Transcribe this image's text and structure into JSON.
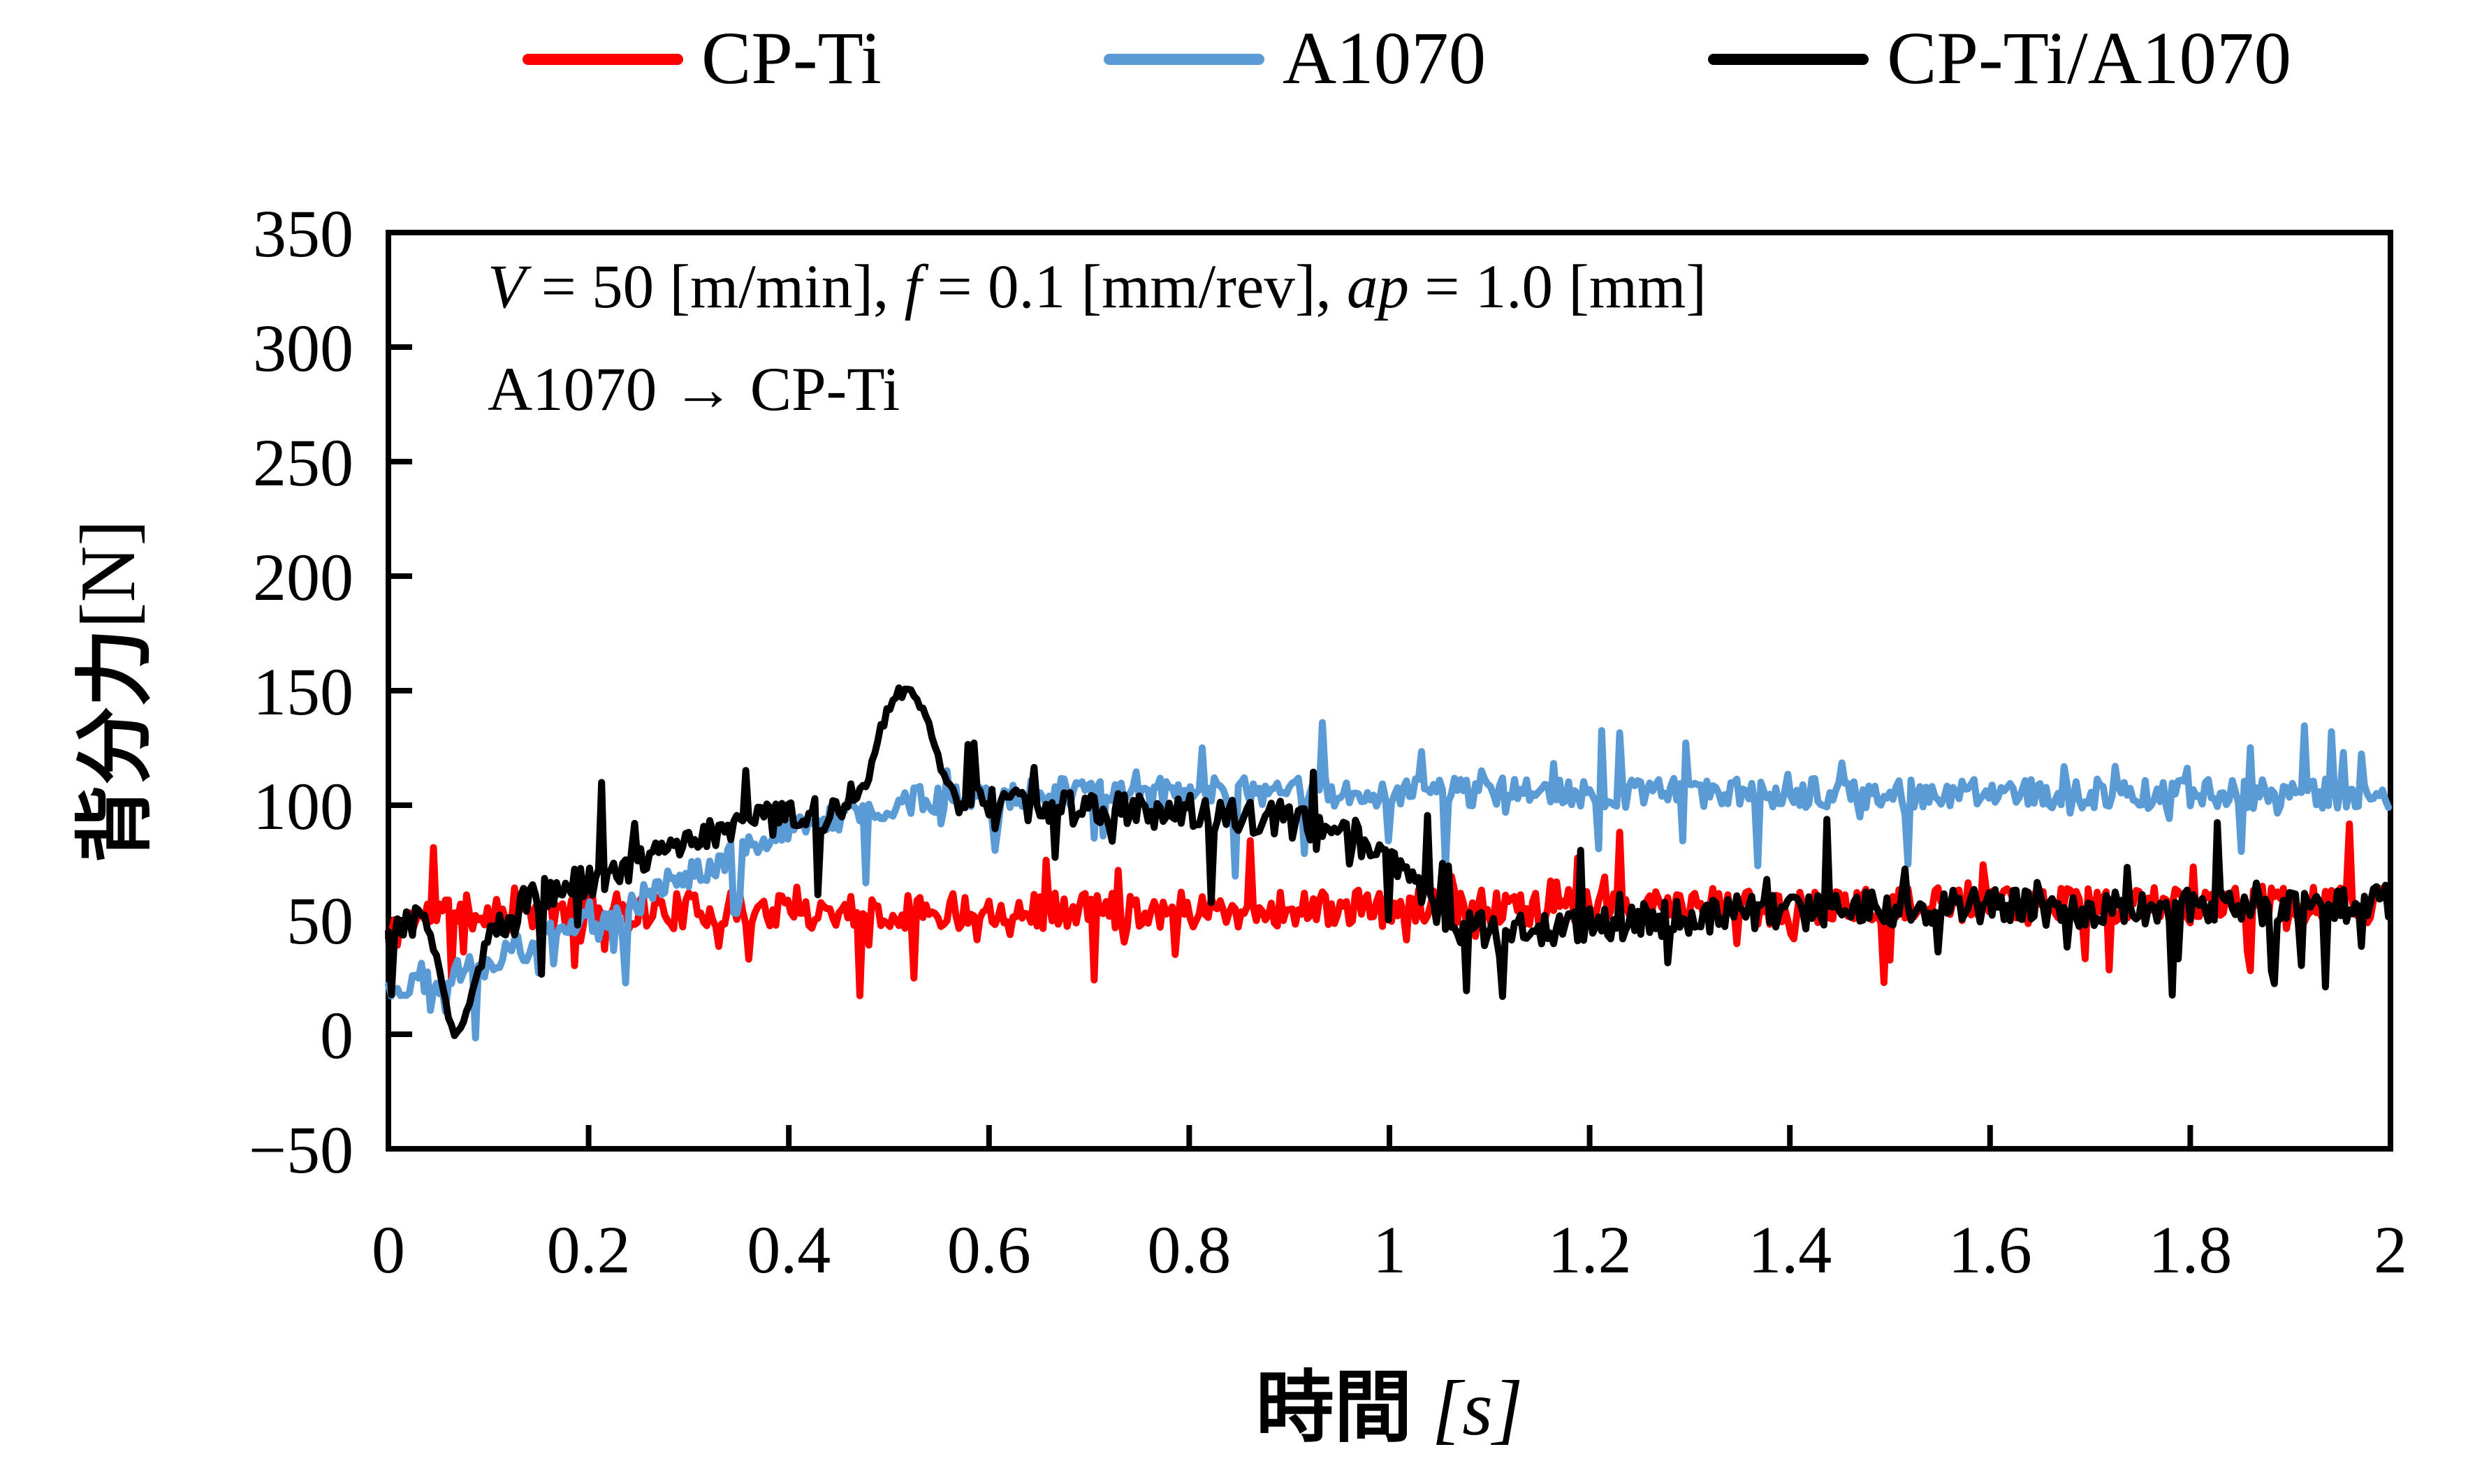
{
  "chart_data": {
    "type": "line",
    "title": "",
    "xlabel_cjk": "時間",
    "xlabel_unit": "[s]",
    "ylabel_cjk": "背分力",
    "ylabel_unit": "[N]",
    "grid": false,
    "legend_position": "top",
    "background": "#ffffff",
    "frame_color": "#000000",
    "x_axis": {
      "min": 0,
      "max": 2,
      "tick_step": 0.2,
      "ticks": [
        {
          "v": 0,
          "label": "0"
        },
        {
          "v": 0.2,
          "label": "0.2"
        },
        {
          "v": 0.4,
          "label": "0.4"
        },
        {
          "v": 0.6,
          "label": "0.6"
        },
        {
          "v": 0.8,
          "label": "0.8"
        },
        {
          "v": 1,
          "label": "1"
        },
        {
          "v": 1.2,
          "label": "1.2"
        },
        {
          "v": 1.4,
          "label": "1.4"
        },
        {
          "v": 1.6,
          "label": "1.6"
        },
        {
          "v": 1.8,
          "label": "1.8"
        },
        {
          "v": 2,
          "label": "2"
        }
      ]
    },
    "y_axis": {
      "min": -50,
      "max": 350,
      "tick_step": 50,
      "ticks": [
        {
          "v": 350,
          "label": "350"
        },
        {
          "v": 300,
          "label": "300"
        },
        {
          "v": 250,
          "label": "250"
        },
        {
          "v": 200,
          "label": "200"
        },
        {
          "v": 150,
          "label": "150"
        },
        {
          "v": 100,
          "label": "100"
        },
        {
          "v": 50,
          "label": "50"
        },
        {
          "v": 0,
          "label": "0"
        },
        {
          "v": -50,
          "label": "−50"
        }
      ]
    },
    "annotation": {
      "line1_segments": [
        {
          "t": "V",
          "i": true
        },
        {
          "t": " = 50 [m/min], ",
          "i": false
        },
        {
          "t": "f",
          "i": true
        },
        {
          "t": " = 0.1 [mm/rev], ",
          "i": false
        },
        {
          "t": "ap",
          "i": true
        },
        {
          "t": " = 1.0 [mm]",
          "i": false
        }
      ],
      "line2": "A1070 → CP-Ti"
    },
    "series": [
      {
        "name": "CP-Ti",
        "color": "#FF0000",
        "seed": 11,
        "noise_amp": 8,
        "spike_prob": 0.085,
        "spike_max": 28,
        "spike_neg_bias": 0.6,
        "smooth_windows": [],
        "keypoints": [
          [
            0,
            42
          ],
          [
            0.02,
            50
          ],
          [
            0.05,
            53
          ],
          [
            0.3,
            54
          ],
          [
            0.6,
            54
          ],
          [
            1.0,
            55
          ],
          [
            1.5,
            56
          ],
          [
            2,
            57
          ]
        ]
      },
      {
        "name": "A1070",
        "color": "#5B9BD5",
        "seed": 22,
        "noise_amp": 6.5,
        "spike_prob": 0.09,
        "spike_max": 30,
        "spike_neg_bias": 0.58,
        "smooth_windows": [],
        "keypoints": [
          [
            0,
            20
          ],
          [
            0.05,
            24
          ],
          [
            0.1,
            32
          ],
          [
            0.15,
            40
          ],
          [
            0.2,
            49
          ],
          [
            0.25,
            59
          ],
          [
            0.3,
            70
          ],
          [
            0.35,
            80
          ],
          [
            0.4,
            88
          ],
          [
            0.45,
            95
          ],
          [
            0.5,
            100
          ],
          [
            0.55,
            103
          ],
          [
            0.6,
            105
          ],
          [
            1.0,
            106
          ],
          [
            1.5,
            105
          ],
          [
            2,
            105
          ]
        ]
      },
      {
        "name": "CP-Ti/A1070",
        "color": "#000000",
        "seed": 33,
        "noise_amp": 7.5,
        "spike_prob": 0.09,
        "spike_max": 32,
        "spike_neg_bias": 0.55,
        "smooth_windows": [
          [
            0.03,
            0.095
          ],
          [
            0.455,
            0.57
          ]
        ],
        "keypoints": [
          [
            0,
            44
          ],
          [
            0.035,
            52
          ],
          [
            0.05,
            30
          ],
          [
            0.065,
            -2
          ],
          [
            0.08,
            12
          ],
          [
            0.1,
            42
          ],
          [
            0.13,
            56
          ],
          [
            0.17,
            63
          ],
          [
            0.22,
            70
          ],
          [
            0.27,
            80
          ],
          [
            0.32,
            88
          ],
          [
            0.37,
            93
          ],
          [
            0.42,
            95
          ],
          [
            0.46,
            99
          ],
          [
            0.48,
            112
          ],
          [
            0.495,
            140
          ],
          [
            0.51,
            149
          ],
          [
            0.525,
            148
          ],
          [
            0.54,
            135
          ],
          [
            0.555,
            112
          ],
          [
            0.57,
            101
          ],
          [
            0.62,
            100
          ],
          [
            0.7,
            98
          ],
          [
            0.8,
            97
          ],
          [
            0.88,
            94
          ],
          [
            0.95,
            88
          ],
          [
            1.0,
            78
          ],
          [
            1.03,
            62
          ],
          [
            1.07,
            47
          ],
          [
            1.12,
            45
          ],
          [
            1.2,
            48
          ],
          [
            1.3,
            51
          ],
          [
            1.4,
            54
          ],
          [
            1.5,
            55
          ],
          [
            1.6,
            56
          ],
          [
            1.7,
            54
          ],
          [
            1.8,
            57
          ],
          [
            1.9,
            55
          ],
          [
            2,
            58
          ]
        ]
      }
    ]
  }
}
